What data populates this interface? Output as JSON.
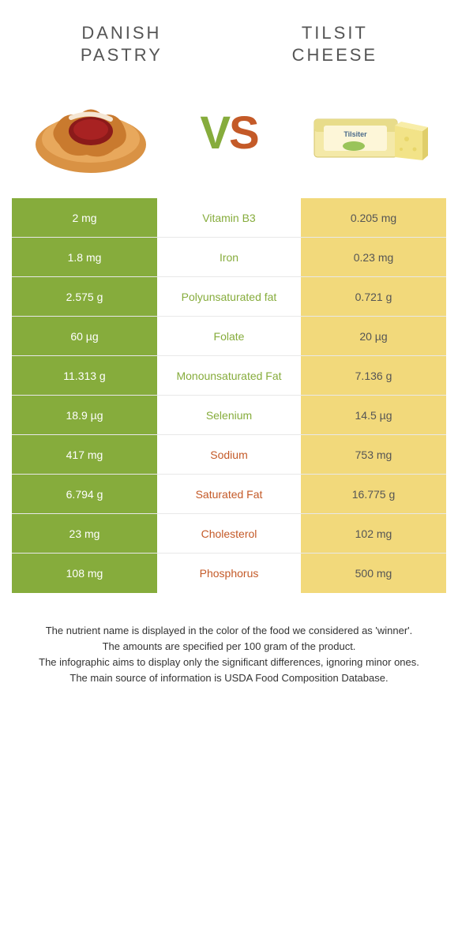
{
  "foods": {
    "left": {
      "name": "DANISH\nPASTRY",
      "color": "#86ac3c"
    },
    "right": {
      "name": "TILSIT\nCHEESE",
      "color": "#f2d97b"
    }
  },
  "vs": {
    "v": "V",
    "s": "S"
  },
  "rows": [
    {
      "left": "2 mg",
      "label": "Vitamin B3",
      "right": "0.205 mg",
      "winner": "left"
    },
    {
      "left": "1.8 mg",
      "label": "Iron",
      "right": "0.23 mg",
      "winner": "left"
    },
    {
      "left": "2.575 g",
      "label": "Polyunsaturated fat",
      "right": "0.721 g",
      "winner": "left"
    },
    {
      "left": "60 µg",
      "label": "Folate",
      "right": "20 µg",
      "winner": "left"
    },
    {
      "left": "11.313 g",
      "label": "Monounsaturated Fat",
      "right": "7.136 g",
      "winner": "left"
    },
    {
      "left": "18.9 µg",
      "label": "Selenium",
      "right": "14.5 µg",
      "winner": "left"
    },
    {
      "left": "417 mg",
      "label": "Sodium",
      "right": "753 mg",
      "winner": "right"
    },
    {
      "left": "6.794 g",
      "label": "Saturated Fat",
      "right": "16.775 g",
      "winner": "right"
    },
    {
      "left": "23 mg",
      "label": "Cholesterol",
      "right": "102 mg",
      "winner": "right"
    },
    {
      "left": "108 mg",
      "label": "Phosphorus",
      "right": "500 mg",
      "winner": "right"
    }
  ],
  "footer": {
    "line1": "The nutrient name is displayed in the color of the food we considered as 'winner'.",
    "line2": "The amounts are specified per 100 gram of the product.",
    "line3": "The infographic aims to display only the significant differences, ignoring minor ones.",
    "line4": "The main source of information is USDA Food Composition Database."
  },
  "style": {
    "left_bg": "#86ac3c",
    "right_bg": "#f2d97b",
    "left_text": "#ffffff",
    "right_text": "#555555",
    "winner_left_color": "#86ac3c",
    "winner_right_color": "#c45a28"
  }
}
